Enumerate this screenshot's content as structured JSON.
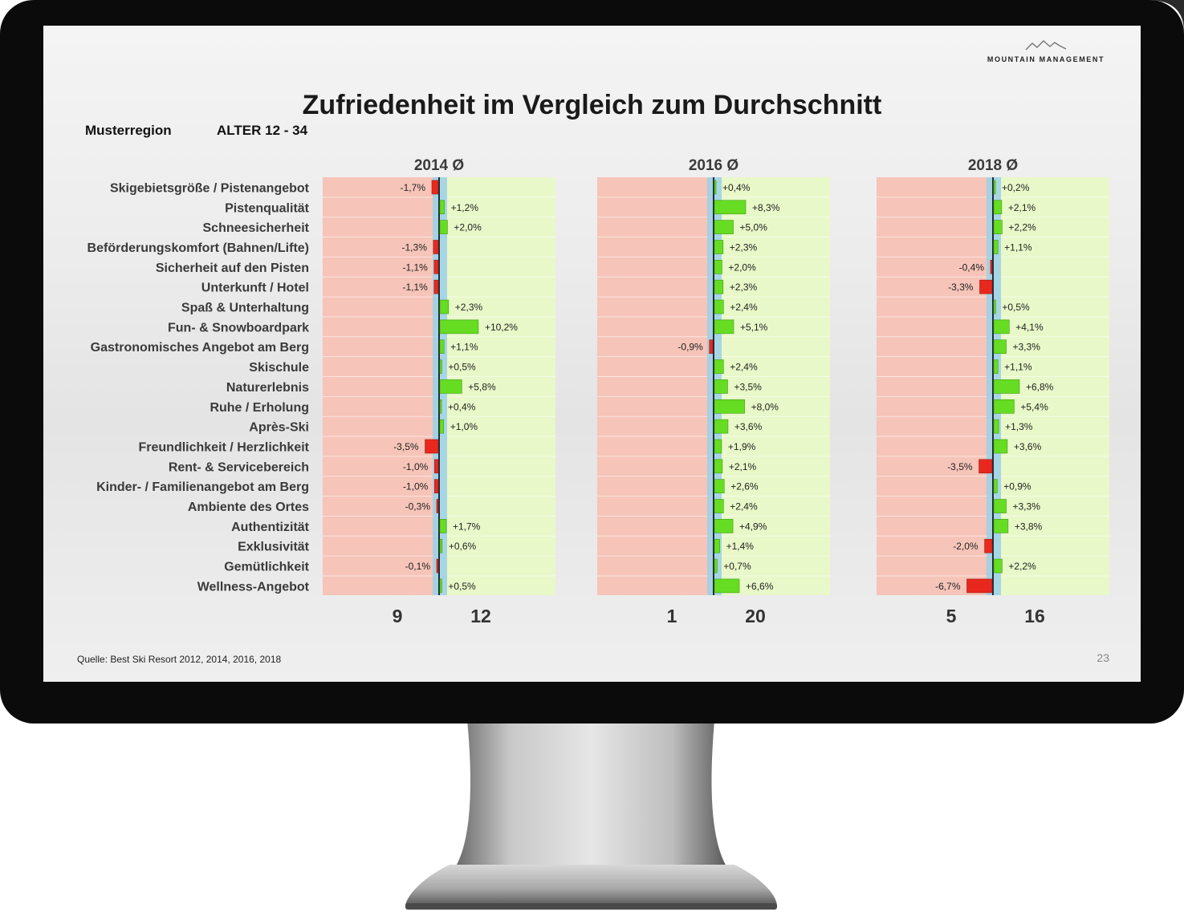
{
  "slide": {
    "title": "Zufriedenheit im Vergleich zum Durchschnitt",
    "region": "Musterregion",
    "age_group": "ALTER 12 - 34",
    "logo_text": "MOUNTAIN MANAGEMENT",
    "source": "Quelle: Best Ski Resort 2012, 2014, 2016, 2018",
    "page_number": "23"
  },
  "colors": {
    "negative_bar": "#e8281e",
    "positive_bar": "#66dd22",
    "negative_zone": "#f6c4b8",
    "positive_zone": "#e8f8c8",
    "average_band": "#9fd2e6",
    "average_line": "#1e2d3c"
  },
  "chart_data": {
    "type": "bar",
    "orientation": "horizontal",
    "categories": [
      "Skigebietsgröße / Pistenangebot",
      "Pistenqualität",
      "Schneesicherheit",
      "Beförderungskomfort (Bahnen/Lifte)",
      "Sicherheit auf den Pisten",
      "Unterkunft / Hotel",
      "Spaß & Unterhaltung",
      "Fun- & Snowboardpark",
      "Gastronomisches Angebot am Berg",
      "Skischule",
      "Naturerlebnis",
      "Ruhe / Erholung",
      "Après-Ski",
      "Freundlichkeit / Herzlichkeit",
      "Rent- & Servicebereich",
      "Kinder- / Familienangebot am Berg",
      "Ambiente des Ortes",
      "Authentizität",
      "Exklusivität",
      "Gemütlichkeit",
      "Wellness-Angebot"
    ],
    "panels": [
      {
        "header": "2014 Ø",
        "values": [
          -1.7,
          1.2,
          2.0,
          -1.3,
          -1.1,
          -1.1,
          2.3,
          10.2,
          1.1,
          0.5,
          5.8,
          0.4,
          1.0,
          -3.5,
          -1.0,
          -1.0,
          -0.3,
          1.7,
          0.6,
          -0.1,
          0.5
        ],
        "labels": [
          "-1,7%",
          "+1,2%",
          "+2,0%",
          "-1,3%",
          "-1,1%",
          "-1,1%",
          "+2,3%",
          "+10,2%",
          "+1,1%",
          "+0,5%",
          "+5,8%",
          "+0,4%",
          "+1,0%",
          "-3,5%",
          "-1,0%",
          "-1,0%",
          "-0,3%",
          "+1,7%",
          "+0,6%",
          "-0,1%",
          "+0,5%"
        ],
        "negative_count": "9",
        "positive_count": "12"
      },
      {
        "header": "2016 Ø",
        "values": [
          0.4,
          8.3,
          5.0,
          2.3,
          2.0,
          2.3,
          2.4,
          5.1,
          -0.9,
          2.4,
          3.5,
          8.0,
          3.6,
          1.9,
          2.1,
          2.6,
          2.4,
          4.9,
          1.4,
          0.7,
          6.6
        ],
        "labels": [
          "+0,4%",
          "+8,3%",
          "+5,0%",
          "+2,3%",
          "+2,0%",
          "+2,3%",
          "+2,4%",
          "+5,1%",
          "-0,9%",
          "+2,4%",
          "+3,5%",
          "+8,0%",
          "+3,6%",
          "+1,9%",
          "+2,1%",
          "+2,6%",
          "+2,4%",
          "+4,9%",
          "+1,4%",
          "+0,7%",
          "+6,6%"
        ],
        "negative_count": "1",
        "positive_count": "20"
      },
      {
        "header": "2018 Ø",
        "values": [
          0.2,
          2.1,
          2.2,
          1.1,
          -0.4,
          -3.3,
          0.5,
          4.1,
          3.3,
          1.1,
          6.8,
          5.4,
          1.3,
          3.6,
          -3.5,
          0.9,
          3.3,
          3.8,
          -2.0,
          2.2,
          -6.7
        ],
        "labels": [
          "+0,2%",
          "+2,1%",
          "+2,2%",
          "+1,1%",
          "-0,4%",
          "-3,3%",
          "+0,5%",
          "+4,1%",
          "+3,3%",
          "+1,1%",
          "+6,8%",
          "+5,4%",
          "+1,3%",
          "+3,6%",
          "-3,5%",
          "+0,9%",
          "+3,3%",
          "+3,8%",
          "-2,0%",
          "+2,2%",
          "-6,7%"
        ],
        "negative_count": "5",
        "positive_count": "16"
      }
    ],
    "grid": false,
    "legend": "none"
  }
}
